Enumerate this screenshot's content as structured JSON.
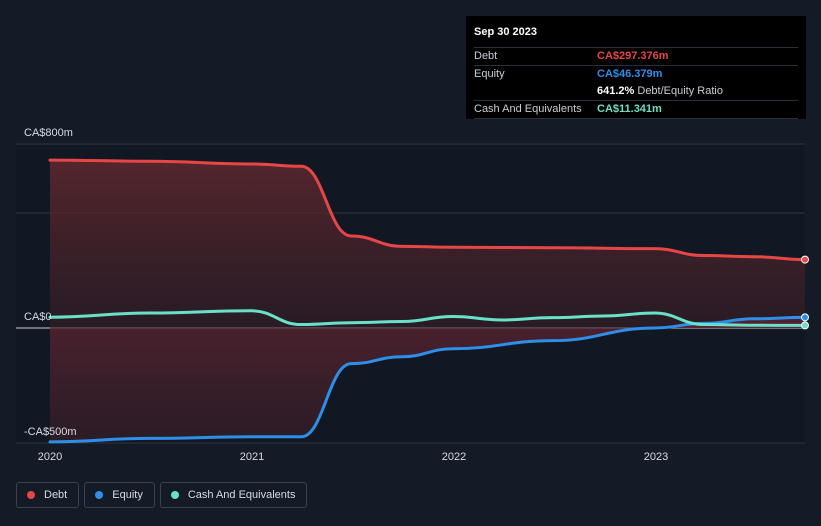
{
  "tooltip": {
    "date": "Sep 30 2023",
    "debt_label": "Debt",
    "debt_value": "CA$297.376m",
    "equity_label": "Equity",
    "equity_value": "CA$46.379m",
    "ratio_value": "641.2%",
    "ratio_label": "Debt/Equity Ratio",
    "cash_label": "Cash And Equivalents",
    "cash_value": "CA$11.341m"
  },
  "legend": [
    {
      "name": "Debt",
      "color": "#e64646"
    },
    {
      "name": "Equity",
      "color": "#2e8ee8"
    },
    {
      "name": "Cash And Equivalents",
      "color": "#69e0c8"
    }
  ],
  "chart_data": {
    "type": "line",
    "title": "",
    "xlabel": "",
    "ylabel": "",
    "y_tick_labels": [
      "CA$800m",
      "CA$0",
      "-CA$500m"
    ],
    "x_tick_labels": [
      "2020",
      "2021",
      "2022",
      "2023"
    ],
    "ylim": [
      -500,
      800
    ],
    "y_gridlines": [
      800,
      500,
      0,
      -500
    ],
    "grid": true,
    "legend_position": "bottom-left",
    "series": [
      {
        "name": "Debt",
        "color": "#e64646",
        "fill": true,
        "x": [
          "2020-01-01",
          "2020-06-30",
          "2020-12-31",
          "2021-03-31",
          "2021-06-30",
          "2021-09-30",
          "2021-12-31",
          "2022-06-30",
          "2022-12-31",
          "2023-03-31",
          "2023-06-30",
          "2023-09-30"
        ],
        "values": [
          730,
          725,
          713,
          703,
          400,
          355,
          351,
          349,
          345,
          315,
          310,
          297.376
        ]
      },
      {
        "name": "Equity",
        "color": "#2e8ee8",
        "fill": true,
        "x": [
          "2020-01-01",
          "2020-06-30",
          "2020-12-31",
          "2021-03-31",
          "2021-06-30",
          "2021-09-30",
          "2021-12-31",
          "2022-06-30",
          "2022-12-31",
          "2023-03-31",
          "2023-06-30",
          "2023-09-30"
        ],
        "values": [
          -495,
          -480,
          -473,
          -473,
          -155,
          -125,
          -90,
          -55,
          0,
          20,
          40,
          46.379
        ]
      },
      {
        "name": "Cash And Equivalents",
        "color": "#69e0c8",
        "fill": false,
        "x": [
          "2020-01-01",
          "2020-06-30",
          "2020-12-31",
          "2021-03-31",
          "2021-06-30",
          "2021-09-30",
          "2021-12-31",
          "2022-03-31",
          "2022-06-30",
          "2022-09-30",
          "2022-12-31",
          "2023-03-31",
          "2023-06-30",
          "2023-09-30"
        ],
        "values": [
          47,
          65,
          75,
          15,
          23,
          28,
          50,
          35,
          45,
          52,
          65,
          15,
          12,
          11.341
        ]
      }
    ]
  }
}
